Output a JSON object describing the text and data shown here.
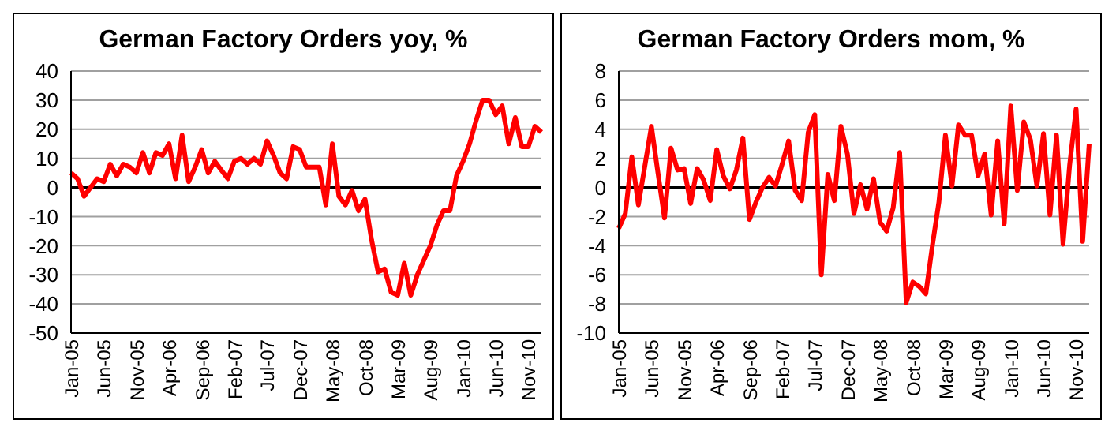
{
  "chart_data": [
    {
      "type": "line",
      "title": "German Factory Orders yoy, %",
      "categories": [
        "Jan-05",
        null,
        null,
        null,
        null,
        "Jun-05",
        null,
        null,
        null,
        null,
        "Nov-05",
        null,
        null,
        null,
        null,
        "Apr-06",
        null,
        null,
        null,
        null,
        "Sep-06",
        null,
        null,
        null,
        null,
        "Feb-07",
        null,
        null,
        null,
        null,
        "Jul-07",
        null,
        null,
        null,
        null,
        "Dec-07",
        null,
        null,
        null,
        null,
        "May-08",
        null,
        null,
        null,
        null,
        "Oct-08",
        null,
        null,
        null,
        null,
        "Mar-09",
        null,
        null,
        null,
        null,
        "Aug-09",
        null,
        null,
        null,
        null,
        "Jan-10",
        null,
        null,
        null,
        null,
        "Jun-10",
        null,
        null,
        null,
        null,
        "Nov-10",
        null,
        null
      ],
      "series": [
        {
          "color": "#ff0000",
          "values": [
            5,
            3,
            -3,
            0,
            3,
            2,
            8,
            4,
            8,
            7,
            5,
            12,
            5,
            12,
            11,
            15,
            3,
            18,
            2,
            7,
            13,
            5,
            9,
            6,
            3,
            9,
            10,
            8,
            10,
            8,
            16,
            11,
            5,
            3,
            14,
            13,
            7,
            7,
            7,
            -6,
            15,
            -3,
            -6,
            -1,
            -8,
            -4,
            -18,
            -29,
            -28,
            -36,
            -37,
            -26,
            -37,
            -30,
            -25,
            -20,
            -13,
            -8,
            -8,
            4,
            9,
            15,
            23,
            30,
            30,
            25,
            28,
            15,
            24,
            14,
            14,
            21,
            19
          ]
        }
      ],
      "ylim": [
        -50,
        40
      ],
      "yticks": [
        -50,
        -40,
        -30,
        -20,
        -10,
        0,
        10,
        20,
        30,
        40
      ],
      "grid": "y",
      "marker": "none",
      "line_style": "solid",
      "legend": false,
      "ref_lines": [
        {
          "axis": "y",
          "value": 0,
          "color": "#000000"
        }
      ]
    },
    {
      "type": "line",
      "title": "German Factory Orders mom, %",
      "categories": [
        "Jan-05",
        null,
        null,
        null,
        null,
        "Jun-05",
        null,
        null,
        null,
        null,
        "Nov-05",
        null,
        null,
        null,
        null,
        "Apr-06",
        null,
        null,
        null,
        null,
        "Sep-06",
        null,
        null,
        null,
        null,
        "Feb-07",
        null,
        null,
        null,
        null,
        "Jul-07",
        null,
        null,
        null,
        null,
        "Dec-07",
        null,
        null,
        null,
        null,
        "May-08",
        null,
        null,
        null,
        null,
        "Oct-08",
        null,
        null,
        null,
        null,
        "Mar-09",
        null,
        null,
        null,
        null,
        "Aug-09",
        null,
        null,
        null,
        null,
        "Jan-10",
        null,
        null,
        null,
        null,
        "Jun-10",
        null,
        null,
        null,
        null,
        "Nov-10",
        null,
        null
      ],
      "series": [
        {
          "color": "#ff0000",
          "values": [
            -2.8,
            -1.8,
            2.1,
            -1.2,
            1.5,
            4.2,
            1.0,
            -2.1,
            2.7,
            1.2,
            1.3,
            -1.1,
            1.3,
            0.5,
            -0.9,
            2.6,
            0.8,
            -0.1,
            1.2,
            3.4,
            -2.2,
            -1.0,
            0.0,
            0.7,
            0.1,
            1.6,
            3.2,
            -0.2,
            -0.9,
            3.8,
            5.0,
            -6.0,
            0.9,
            -0.9,
            4.2,
            2.3,
            -1.8,
            0.2,
            -1.5,
            0.6,
            -2.4,
            -3.0,
            -1.4,
            2.4,
            -7.9,
            -6.5,
            -6.8,
            -7.3,
            -4.0,
            -1.0,
            3.6,
            0.1,
            4.3,
            3.6,
            3.6,
            0.8,
            2.3,
            -1.9,
            3.2,
            -2.5,
            5.6,
            -0.2,
            4.5,
            3.3,
            0.1,
            3.7,
            -1.9,
            3.6,
            -3.9,
            1.5,
            5.4,
            -3.7,
            3.0
          ]
        }
      ],
      "ylim": [
        -10,
        8
      ],
      "yticks": [
        -10,
        -8,
        -6,
        -4,
        -2,
        0,
        2,
        4,
        6,
        8
      ],
      "grid": "y",
      "marker": "none",
      "line_style": "solid",
      "legend": false,
      "ref_lines": [
        {
          "axis": "y",
          "value": 0,
          "color": "#000000"
        }
      ]
    }
  ]
}
